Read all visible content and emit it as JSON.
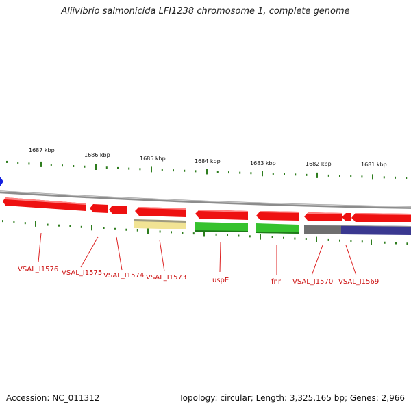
{
  "title": "Aliivibrio salmonicida LFI1238 chromosome 1, complete genome",
  "footer": {
    "accession": "Accession: NC_011312",
    "summary": "Topology: circular; Length: 3,325,165 bp; Genes: 2,966"
  },
  "colors": {
    "backbone": "#8c8c8c",
    "tick": "#2e7d1e",
    "gene_red": "#ee1111",
    "gene_yellow": "#f1e394",
    "gene_green": "#36c22e",
    "gene_gray": "#6f6f6f",
    "gene_navy": "#3a3890",
    "origin_marker": "#1420e0",
    "label_red": "#cc1111"
  },
  "scale_labels": [
    "1687 kbp",
    "1686 kbp",
    "1685 kbp",
    "1684 kbp",
    "1683 kbp",
    "1682 kbp",
    "1681 kbp"
  ],
  "gene_labels": [
    "VSAL_I1576",
    "VSAL_I1575",
    "VSAL_I1574",
    "VSAL_I1573",
    "uspE",
    "fnr",
    "VSAL_I1570",
    "VSAL_I1569"
  ],
  "genes": [
    {
      "label": "VSAL_I1576",
      "strand": "+",
      "color": "gene_red"
    },
    {
      "label": "VSAL_I1575",
      "strand": "+",
      "color": "gene_red"
    },
    {
      "label": "VSAL_I1574",
      "strand": "+",
      "color": "gene_red"
    },
    {
      "label": "VSAL_I1573",
      "strand": "+",
      "color": "gene_red"
    },
    {
      "label": "VSAL_I1573",
      "strand": "-",
      "color": "gene_yellow"
    },
    {
      "label": "uspE",
      "strand": "+",
      "color": "gene_red"
    },
    {
      "label": "uspE",
      "strand": "-",
      "color": "gene_green"
    },
    {
      "label": "fnr",
      "strand": "+",
      "color": "gene_red"
    },
    {
      "label": "fnr",
      "strand": "-",
      "color": "gene_green"
    },
    {
      "label": "VSAL_I1570",
      "strand": "+",
      "color": "gene_red"
    },
    {
      "label": "VSAL_I1570",
      "strand": "-",
      "color": "gene_gray"
    },
    {
      "label": "VSAL_I1569",
      "strand": "+",
      "color": "gene_red"
    },
    {
      "label": "VSAL_I1569",
      "strand": "+",
      "color": "gene_red"
    },
    {
      "label": "VSAL_I1569",
      "strand": "-",
      "color": "gene_navy"
    }
  ]
}
